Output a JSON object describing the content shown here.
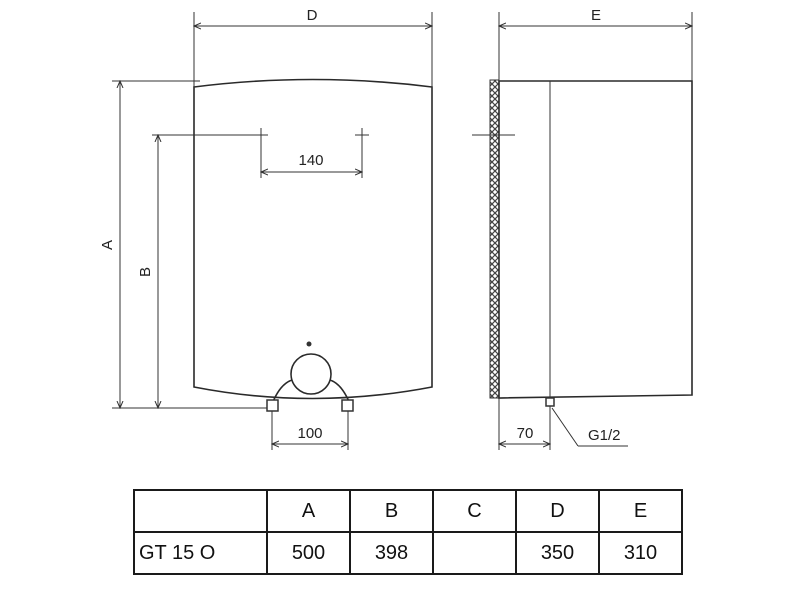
{
  "drawing": {
    "front_view": {
      "width_label": "D",
      "height_label": "A",
      "connection_height_label": "B",
      "top_spacing": "140",
      "pipe_spacing": "100"
    },
    "side_view": {
      "depth_label": "E",
      "pipe_offset": "70",
      "thread": "G1/2"
    }
  },
  "table": {
    "headers": [
      "",
      "A",
      "B",
      "C",
      "D",
      "E"
    ],
    "rows": [
      [
        "GT 15 O",
        "500",
        "398",
        "",
        "350",
        "310"
      ]
    ]
  }
}
